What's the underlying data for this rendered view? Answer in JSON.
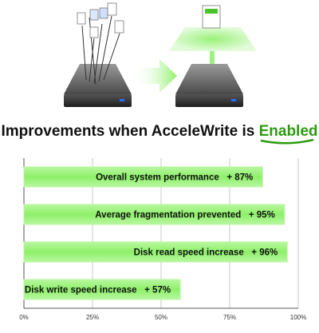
{
  "heading": {
    "prefix": "Improvements when AcceleWrite is ",
    "highlight": "Enabled"
  },
  "illustration": {
    "left_icon": "hard-drive-scattered-files",
    "arrow_icon": "right-arrow",
    "right_icon": "hard-drive-single-file-green-glow"
  },
  "colors": {
    "bar_fill": "#8ef06a",
    "bar_edge": "#b8f7a0",
    "highlight": "#2e9a12"
  },
  "chart_data": {
    "type": "bar",
    "orientation": "horizontal",
    "categories": [
      "Overall system performance",
      "Average fragmentation prevented",
      "Disk read speed increase",
      "Disk write speed increase"
    ],
    "values": [
      87,
      95,
      96,
      57
    ],
    "bar_labels": [
      "Overall system performance   + 87%",
      "Average fragmentation prevented   + 95%",
      "Disk read speed increase   + 96%",
      "Disk write speed increase   + 57%"
    ],
    "xlim": [
      0,
      100
    ],
    "xticks": [
      "0%",
      "25%",
      "50%",
      "75%",
      "100%"
    ],
    "grid": true
  }
}
